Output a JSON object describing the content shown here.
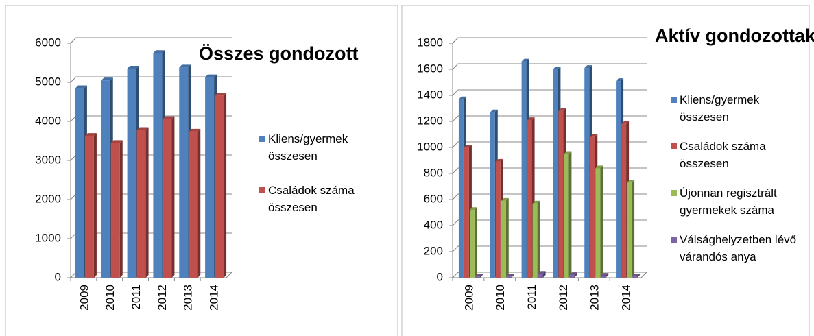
{
  "chart_data": [
    {
      "type": "bar",
      "title": "Összes gondozott",
      "categories": [
        "2009",
        "2010",
        "2011",
        "2012",
        "2013",
        "2014"
      ],
      "series": [
        {
          "name": "Kliens/gyermek összesen",
          "color": "#4f81bd",
          "values": [
            4850,
            5050,
            5350,
            5750,
            5380,
            5130
          ]
        },
        {
          "name": "Családok száma összesen",
          "color": "#c0504d",
          "values": [
            3630,
            3450,
            3780,
            4060,
            3740,
            4660
          ]
        }
      ],
      "ylim": [
        0,
        6000
      ],
      "yticks": [
        0,
        1000,
        2000,
        3000,
        4000,
        5000,
        6000
      ],
      "grid": true,
      "legend": "right"
    },
    {
      "type": "bar",
      "title": "Aktív gondozottak",
      "categories": [
        "2009",
        "2010",
        "2011",
        "2012",
        "2013",
        "2014"
      ],
      "series": [
        {
          "name": "Kliens/gyermek összesen",
          "color": "#4f81bd",
          "values": [
            1370,
            1270,
            1660,
            1600,
            1610,
            1510
          ]
        },
        {
          "name": "Családok száma összesen",
          "color": "#c0504d",
          "values": [
            1000,
            890,
            1210,
            1280,
            1080,
            1180
          ]
        },
        {
          "name": "Újonnan regisztrált gyermekek száma",
          "color": "#9bbb59",
          "values": [
            520,
            590,
            570,
            950,
            840,
            730
          ]
        },
        {
          "name": "Válsághelyzetben lévő várandós anya",
          "color": "#8064a2",
          "values": [
            10,
            10,
            30,
            20,
            15,
            10
          ]
        }
      ],
      "ylim": [
        0,
        1800
      ],
      "yticks": [
        0,
        200,
        400,
        600,
        800,
        1000,
        1200,
        1400,
        1600,
        1800
      ],
      "grid": true,
      "legend": "right"
    }
  ]
}
